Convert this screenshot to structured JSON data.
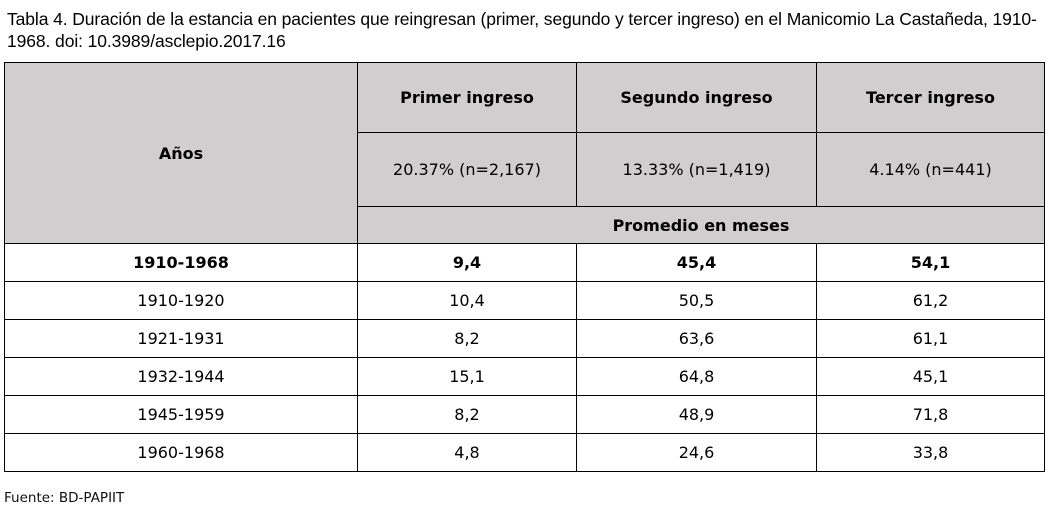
{
  "caption": "Tabla 4. Duración de la estancia en pacientes que reingresan (primer, segundo y tercer ingreso) en el Manicomio La Castañeda, 1910-1968. doi: 10.3989/asclepio.2017.16",
  "table": {
    "years_header": "Años",
    "columns": [
      {
        "title": "Primer ingreso",
        "share": "20.37% (n=2,167)"
      },
      {
        "title": "Segundo ingreso",
        "share": "13.33% (n=1,419)"
      },
      {
        "title": "Tercer ingreso",
        "share": "4.14% (n=441)"
      }
    ],
    "subheader": "Promedio en meses",
    "total_row": {
      "period": "1910-1968",
      "values": [
        "9,4",
        "45,4",
        "54,1"
      ]
    },
    "rows": [
      {
        "period": "1910-1920",
        "values": [
          "10,4",
          "50,5",
          "61,2"
        ]
      },
      {
        "period": "1921-1931",
        "values": [
          "8,2",
          "63,6",
          "61,1"
        ]
      },
      {
        "period": "1932-1944",
        "values": [
          "15,1",
          "64,8",
          "45,1"
        ]
      },
      {
        "period": "1945-1959",
        "values": [
          "8,2",
          "48,9",
          "71,8"
        ]
      },
      {
        "period": "1960-1968",
        "values": [
          "4,8",
          "24,6",
          "33,8"
        ]
      }
    ]
  },
  "source": "Fuente: BD-PAPIIT"
}
